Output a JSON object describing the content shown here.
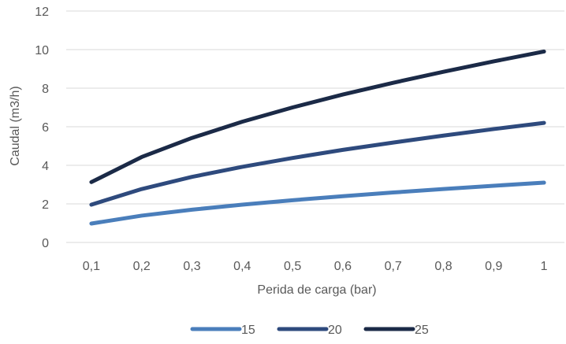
{
  "chart_data": {
    "type": "line",
    "title": "",
    "xlabel": "Perida de carga (bar)",
    "ylabel": "Caudal (m3/h)",
    "categories": [
      "0,1",
      "0,2",
      "0,3",
      "0,4",
      "0,5",
      "0,6",
      "0,7",
      "0,8",
      "0,9",
      "1"
    ],
    "ylim": [
      0,
      12
    ],
    "yticks": [
      0,
      2,
      4,
      6,
      8,
      10,
      12
    ],
    "grid": "horizontal",
    "legend": "bottom",
    "series": [
      {
        "name": "15",
        "color": "#4a7ebb",
        "values": [
          0.98,
          1.39,
          1.7,
          1.96,
          2.19,
          2.4,
          2.59,
          2.77,
          2.94,
          3.1
        ]
      },
      {
        "name": "20",
        "color": "#2e4a7d",
        "values": [
          1.96,
          2.77,
          3.4,
          3.92,
          4.38,
          4.8,
          5.18,
          5.54,
          5.88,
          6.2
        ]
      },
      {
        "name": "25",
        "color": "#1b2a47",
        "values": [
          3.13,
          4.43,
          5.42,
          6.26,
          7.0,
          7.67,
          8.28,
          8.85,
          9.39,
          9.9
        ]
      }
    ]
  }
}
